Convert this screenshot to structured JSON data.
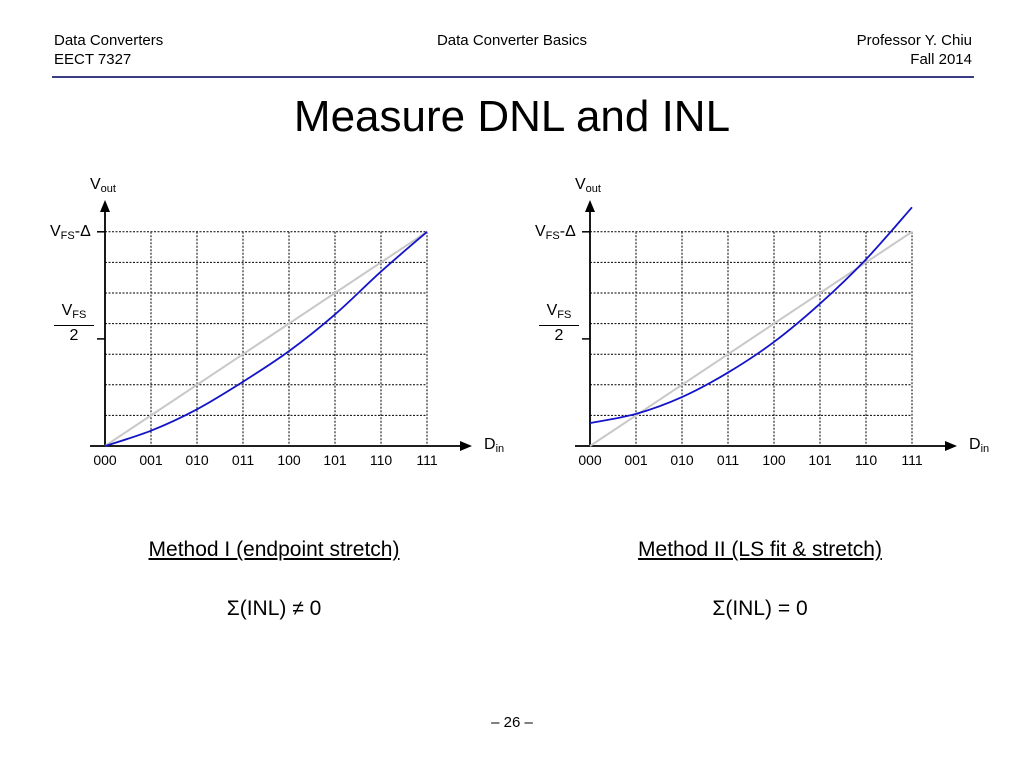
{
  "header": {
    "left_line1": "Data Converters",
    "left_line2": "EECT 7327",
    "center": "Data Converter Basics",
    "right_line1": "Professor Y. Chiu",
    "right_line2": "Fall 2014"
  },
  "title": "Measure DNL and INL",
  "axis": {
    "y_symbol": "V",
    "y_sub": "out",
    "x_symbol": "D",
    "x_sub": "in",
    "vfs_symbol": "V",
    "vfs_sub": "FS",
    "vfs_suffix": "-Δ",
    "half_den": "2"
  },
  "colors": {
    "curve": "#1414c8",
    "ideal": "#c8c8c8",
    "grid": "#000000",
    "header_rule": "#3d3d85"
  },
  "chart_data": [
    {
      "type": "line",
      "categories": [
        "000",
        "001",
        "010",
        "011",
        "100",
        "101",
        "110",
        "111"
      ],
      "ylim": [
        0,
        7
      ],
      "series": [
        {
          "values": [
            0,
            1,
            2,
            3,
            4,
            5,
            6,
            7
          ]
        },
        {
          "values": [
            0,
            0.5,
            1.2,
            2.1,
            3.1,
            4.3,
            5.7,
            7.0
          ]
        }
      ]
    },
    {
      "type": "line",
      "categories": [
        "000",
        "001",
        "010",
        "011",
        "100",
        "101",
        "110",
        "111"
      ],
      "ylim": [
        0,
        7
      ],
      "series": [
        {
          "values": [
            0,
            1,
            2,
            3,
            4,
            5,
            6,
            7
          ]
        },
        {
          "values": [
            0.75,
            1.05,
            1.6,
            2.4,
            3.4,
            4.65,
            6.1,
            7.8
          ]
        }
      ]
    }
  ],
  "methods": [
    {
      "label": "Method I (endpoint stretch)",
      "equation": "Σ(INL) ≠ 0"
    },
    {
      "label": "Method II (LS fit & stretch)",
      "equation": "Σ(INL) = 0"
    }
  ],
  "page_number": "– 26 –"
}
